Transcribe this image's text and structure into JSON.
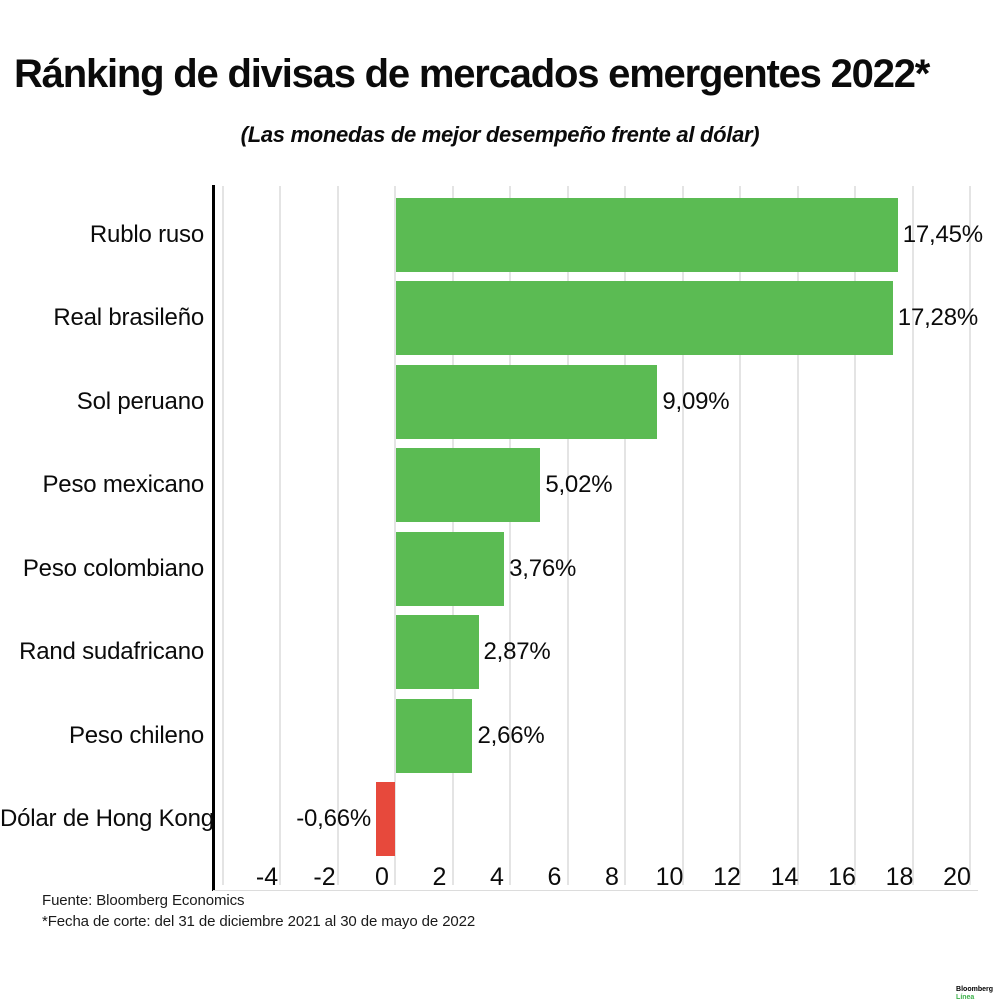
{
  "title": "Ránking de divisas de mercados emergentes 2022*",
  "subtitle": "(Las monedas de mejor desempeño frente al dólar)",
  "footer": {
    "source": "Fuente: Bloomberg Economics",
    "footnote": "*Fecha de corte: del 31 de diciembre 2021 al 30 de mayo de 2022"
  },
  "logo": {
    "line1": "Bloomberg",
    "line2": "Línea"
  },
  "colors": {
    "positive_bar": "#5bbb53",
    "negative_bar": "#e7493c",
    "gridline": "#e4e4e4",
    "axis": "#000000",
    "text": "#0b0b0b",
    "logo_green": "#3cb04a"
  },
  "chart_data": {
    "type": "bar",
    "orientation": "horizontal",
    "title": "Ránking de divisas de mercados emergentes 2022*",
    "subtitle": "(Las monedas de mejor desempeño frente al dólar)",
    "categories": [
      "Rublo ruso",
      "Real brasileño",
      "Sol peruano",
      "Peso mexicano",
      "Peso colombiano",
      "Rand sudafricano",
      "Peso chileno",
      "Dólar de Hong Kong"
    ],
    "values": [
      17.45,
      17.28,
      9.09,
      5.02,
      3.76,
      2.87,
      2.66,
      -0.66
    ],
    "value_labels": [
      "17,45%",
      "17,28%",
      "9,09%",
      "5,02%",
      "3,76%",
      "2,87%",
      "2,66%",
      "-0,66%"
    ],
    "unit": "%",
    "xticks": [
      -4,
      -2,
      0,
      2,
      4,
      6,
      8,
      10,
      12,
      14,
      16,
      18,
      20
    ],
    "xtick_labels": [
      "-4",
      "-2",
      "0",
      "2",
      "4",
      "6",
      "8",
      "10",
      "12",
      "14",
      "16",
      "18",
      "20"
    ],
    "grid_values": [
      -6,
      -4,
      -2,
      0,
      2,
      4,
      6,
      8,
      10,
      12,
      14,
      16,
      18,
      20
    ],
    "xlim": [
      -6.35,
      20.3
    ],
    "grid": true,
    "legend": false,
    "xlabel": "",
    "ylabel": ""
  }
}
